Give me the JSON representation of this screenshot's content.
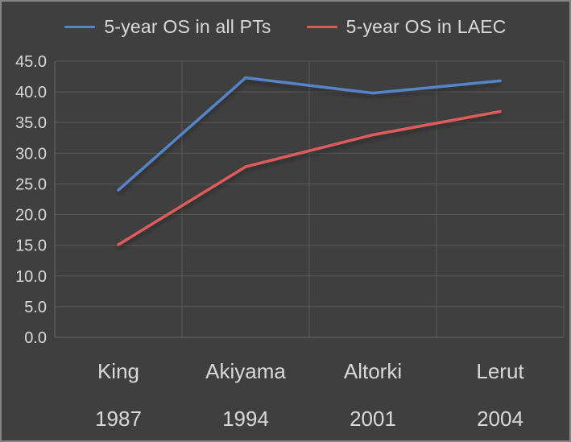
{
  "colors": {
    "background": "#3F3F3F",
    "grid": "#595959",
    "axis": "#6A6A6A",
    "text": "#D9D9D9",
    "border": "#858585",
    "series_blue": "#5585C8",
    "series_red": "#DE5B5B"
  },
  "chart_data": {
    "type": "line",
    "title": "",
    "categories": [
      "King",
      "Akiyama",
      "Altorki",
      "Lerut"
    ],
    "category_sublabels": [
      "1987",
      "1994",
      "2001",
      "2004"
    ],
    "series": [
      {
        "name": "5-year OS in all PTs",
        "color": "#5585C8",
        "values": [
          24.0,
          42.3,
          39.8,
          41.8
        ]
      },
      {
        "name": "5-year OS in LAEC",
        "color": "#DE5B5B",
        "values": [
          15.1,
          27.8,
          33.0,
          36.8
        ]
      }
    ],
    "xlabel": "",
    "ylabel": "",
    "ylim": [
      0,
      45
    ],
    "ytick_step": 5,
    "ytick_labels": [
      "0.0",
      "5.0",
      "10.0",
      "15.0",
      "20.0",
      "25.0",
      "30.0",
      "35.0",
      "40.0",
      "45.0"
    ],
    "grid": true,
    "legend_position": "top"
  }
}
